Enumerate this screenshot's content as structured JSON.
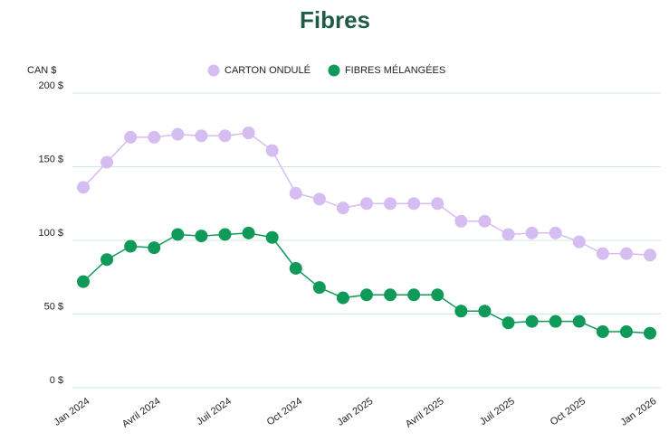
{
  "chart_data": {
    "type": "line",
    "title": "Fibres",
    "y_label": "CAN $",
    "categories": [
      "Jan 2024",
      null,
      null,
      "Avril 2024",
      null,
      null,
      "Juil 2024",
      null,
      null,
      "Oct 2024",
      null,
      null,
      "Jan 2025",
      null,
      null,
      "Avril 2025",
      null,
      null,
      "Juil 2025",
      null,
      null,
      "Oct 2025",
      null,
      null,
      "Jan 2026"
    ],
    "series": [
      {
        "name": "CARTON ONDULÉ",
        "color": "#d5bdf2",
        "values": [
          136,
          153,
          170,
          170,
          172,
          171,
          171,
          173,
          161,
          132,
          128,
          122,
          125,
          125,
          125,
          125,
          113,
          113,
          104,
          105,
          105,
          99,
          91,
          91,
          90
        ]
      },
      {
        "name": "FIBRES MÉLANGÉES",
        "color": "#0f9a5a",
        "values": [
          72,
          87,
          96,
          95,
          104,
          103,
          104,
          105,
          102,
          81,
          68,
          61,
          63,
          63,
          63,
          63,
          52,
          52,
          44,
          45,
          45,
          45,
          38,
          38,
          37
        ]
      }
    ],
    "ylim": [
      0,
      200
    ],
    "yticks": [
      {
        "value": 0,
        "label": "0 $"
      },
      {
        "value": 50,
        "label": "50 $"
      },
      {
        "value": 100,
        "label": "100 $"
      },
      {
        "value": 150,
        "label": "150 $"
      },
      {
        "value": 200,
        "label": "200 $"
      }
    ],
    "grid": true,
    "legend": "top"
  }
}
